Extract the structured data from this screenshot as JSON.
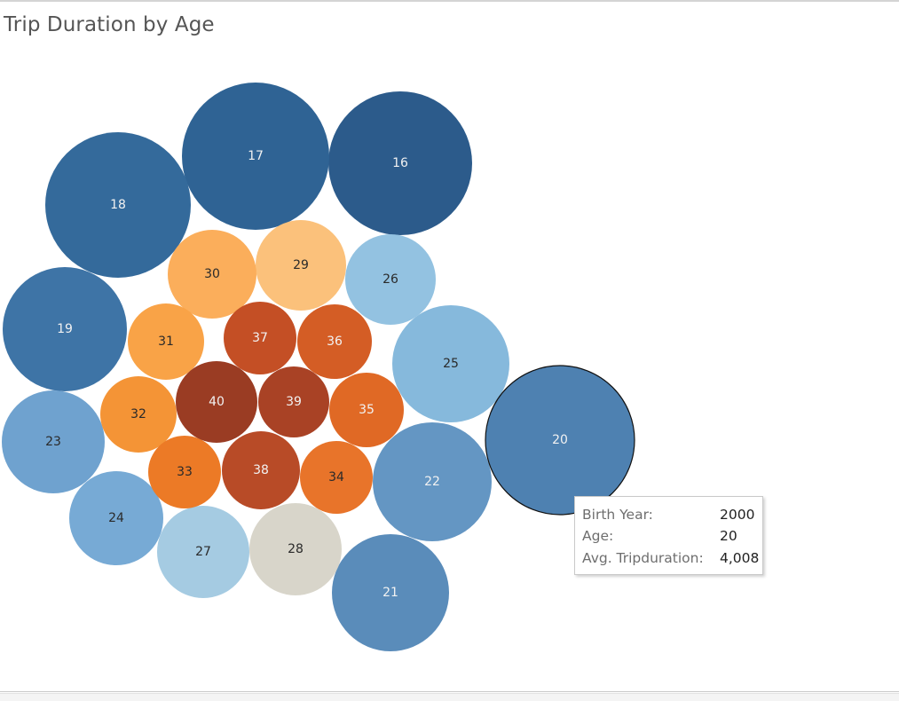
{
  "title": "Trip Duration by Age",
  "chart_data": {
    "type": "bubble",
    "title": "Trip Duration by Age",
    "size_measure": "Avg. Tripduration",
    "color_measure": "Age",
    "bubbles": [
      {
        "age": 16,
        "color": "#2c5b8b"
      },
      {
        "age": 17,
        "color": "#2f6394"
      },
      {
        "age": 18,
        "color": "#346a9b"
      },
      {
        "age": 19,
        "color": "#3e74a6"
      },
      {
        "age": 20,
        "color": "#4e81b1",
        "selected": true,
        "birth_year": 2000,
        "avg_tripduration": 4008
      },
      {
        "age": 21,
        "color": "#5a8cba"
      },
      {
        "age": 22,
        "color": "#6496c3"
      },
      {
        "age": 23,
        "color": "#6fa2cf"
      },
      {
        "age": 24,
        "color": "#77aad5"
      },
      {
        "age": 25,
        "color": "#86b9dc"
      },
      {
        "age": 26,
        "color": "#93c2e1"
      },
      {
        "age": 27,
        "color": "#a5cbe2"
      },
      {
        "age": 28,
        "color": "#d8d5ca"
      },
      {
        "age": 29,
        "color": "#fbc17b"
      },
      {
        "age": 30,
        "color": "#fbae5b"
      },
      {
        "age": 31,
        "color": "#f9a347"
      },
      {
        "age": 32,
        "color": "#f49436"
      },
      {
        "age": 33,
        "color": "#ec7a26"
      },
      {
        "age": 34,
        "color": "#e8742a"
      },
      {
        "age": 35,
        "color": "#e06925"
      },
      {
        "age": 36,
        "color": "#d45d25"
      },
      {
        "age": 37,
        "color": "#c44f25"
      },
      {
        "age": 38,
        "color": "#b84b27"
      },
      {
        "age": 39,
        "color": "#a94225"
      },
      {
        "age": 40,
        "color": "#9a3c23"
      }
    ],
    "tooltip": {
      "rows": [
        {
          "label": "Birth Year:",
          "value": "2000"
        },
        {
          "label": "Age:",
          "value": "20"
        },
        {
          "label": "Avg. Tripduration:",
          "value": "4,008"
        }
      ]
    }
  }
}
